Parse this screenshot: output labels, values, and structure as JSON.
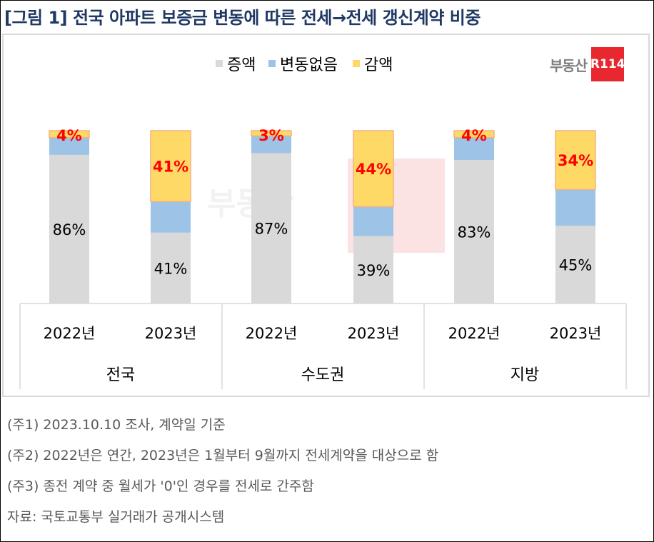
{
  "title": "[그림 1] 전국 아파트 보증금 변동에 따른 전세→전세 갱신계약 비중",
  "logo": {
    "text": "부동산",
    "mark": "R114"
  },
  "chart_data": {
    "type": "bar",
    "stacked": true,
    "ylim": [
      0,
      100
    ],
    "grid": false,
    "legend_position": "top",
    "groups": [
      "전국",
      "수도권",
      "지방"
    ],
    "categories": [
      "2022년",
      "2023년",
      "2022년",
      "2023년",
      "2022년",
      "2023년"
    ],
    "series": [
      {
        "name": "증액",
        "color": "#d9d9d9",
        "values": [
          86,
          41,
          87,
          39,
          83,
          45
        ],
        "labels": [
          "86%",
          "41%",
          "87%",
          "39%",
          "83%",
          "45%"
        ]
      },
      {
        "name": "변동없음",
        "color": "#9dc3e6",
        "values": [
          10,
          18,
          10,
          17,
          13,
          21
        ]
      },
      {
        "name": "감액",
        "color": "#ffd966",
        "values": [
          4,
          41,
          3,
          44,
          4,
          34
        ],
        "labels": [
          "4%",
          "41%",
          "3%",
          "44%",
          "4%",
          "34%"
        ]
      }
    ]
  },
  "notes": [
    "(주1) 2023.10.10 조사, 계약일 기준",
    "(주2) 2022년은 연간, 2023년은 1월부터 9월까지 전세계약을 대상으로 함",
    "(주3) 종전 계약 중 월세가 '0'인 경우를 전세로 간주함",
    "자료: 국토교통부 실거래가 공개시스템"
  ]
}
